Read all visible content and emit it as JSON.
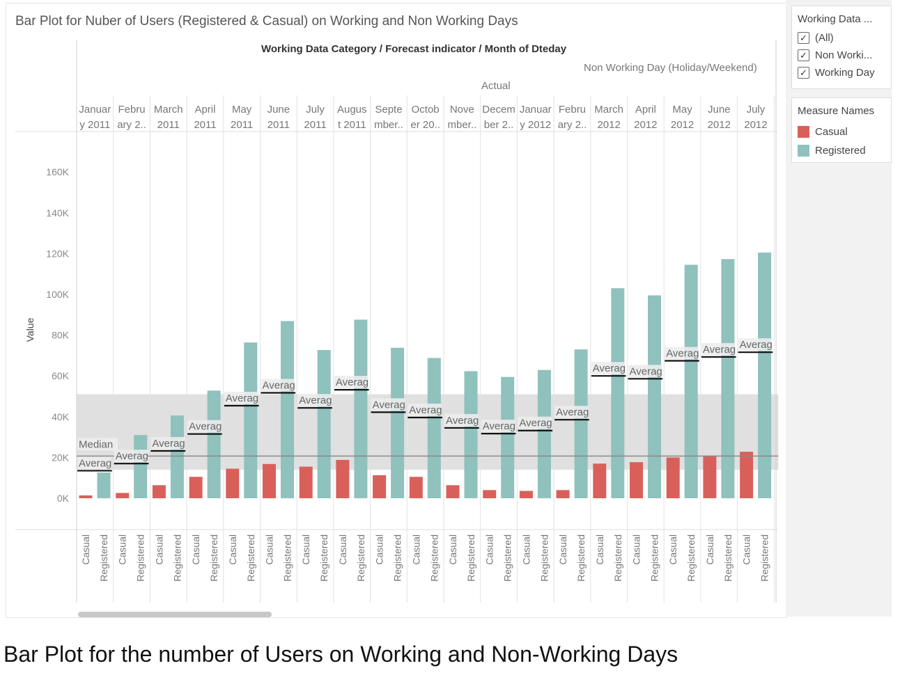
{
  "title": "Bar Plot for Nuber of Users (Registered & Casual) on Working and Non Working Days",
  "header": {
    "category_path": "Working Data Category / Forecast indicator / Month of Dteday",
    "group_label": "Non Working Day (Holiday/Weekend)",
    "forecast_label": "Actual"
  },
  "filter": {
    "title": "Working Data ...",
    "options": [
      {
        "label": "(All)",
        "checked": true
      },
      {
        "label": "Non Worki...",
        "checked": true
      },
      {
        "label": "Working Day",
        "checked": true
      }
    ]
  },
  "legend": {
    "title": "Measure Names",
    "items": [
      {
        "label": "Casual",
        "color": "#d9605a"
      },
      {
        "label": "Registered",
        "color": "#8fc1bd"
      }
    ]
  },
  "caption": "Bar Plot for the number of Users on Working and Non-Working Days",
  "chart_data": {
    "type": "bar",
    "ylabel": "Value",
    "ylim": [
      0,
      180000
    ],
    "yticks": [
      0,
      20000,
      40000,
      60000,
      80000,
      100000,
      120000,
      140000,
      160000
    ],
    "ytick_labels": [
      "0K",
      "20K",
      "40K",
      "60K",
      "80K",
      "100K",
      "120K",
      "140K",
      "160K"
    ],
    "grid": false,
    "month_labels": [
      [
        "Januar",
        "y 2011"
      ],
      [
        "Febru",
        "ary 2.."
      ],
      [
        "March",
        "2011"
      ],
      [
        "April",
        "2011"
      ],
      [
        "May",
        "2011"
      ],
      [
        "June",
        "2011"
      ],
      [
        "July",
        "2011"
      ],
      [
        "Augus",
        "t 2011"
      ],
      [
        "Septe",
        "mber.."
      ],
      [
        "Octob",
        "er 20.."
      ],
      [
        "Nove",
        "mber.."
      ],
      [
        "Decem",
        "ber 2.."
      ],
      [
        "Januar",
        "y 2012"
      ],
      [
        "Febru",
        "ary 2.."
      ],
      [
        "March",
        "2012"
      ],
      [
        "April",
        "2012"
      ],
      [
        "May",
        "2012"
      ],
      [
        "June",
        "2012"
      ],
      [
        "July",
        "2012"
      ]
    ],
    "sub_categories": [
      "Casual",
      "Registered"
    ],
    "series": [
      {
        "name": "Casual",
        "values": [
          1400,
          2600,
          6400,
          10500,
          14500,
          16800,
          15500,
          18800,
          11300,
          10500,
          6400,
          4000,
          3600,
          4000,
          17000,
          17700,
          20000,
          20900,
          22800
        ]
      },
      {
        "name": "Registered",
        "values": [
          12600,
          31000,
          40600,
          52800,
          76400,
          86900,
          72700,
          87600,
          73800,
          68800,
          62300,
          59500,
          62900,
          73000,
          103000,
          99500,
          114500,
          117300,
          120500
        ]
      }
    ],
    "average_lines": [
      13500,
      17000,
      23200,
      31500,
      45400,
      51700,
      44300,
      53200,
      42200,
      39600,
      34500,
      31700,
      33200,
      38500,
      60000,
      58600,
      67400,
      69300,
      71600
    ],
    "average_label": "Average",
    "median_line": 20700,
    "median_label": "Median",
    "band": [
      14000,
      51000
    ]
  }
}
